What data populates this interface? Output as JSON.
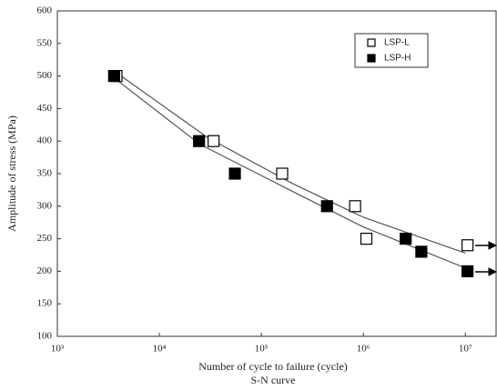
{
  "chart_data": {
    "type": "scatter",
    "x_label": "Number of cycle to failure (cycle)",
    "y_label": "Amplitude of stress (MPa)",
    "caption": "S-N curve",
    "x_log": true,
    "xlim": [
      1000,
      20000000
    ],
    "xticks": [
      {
        "value": 1000,
        "label": "10³"
      },
      {
        "value": 10000,
        "label": "10⁴"
      },
      {
        "value": 100000,
        "label": "10⁵"
      },
      {
        "value": 1000000,
        "label": "10⁶"
      },
      {
        "value": 10000000,
        "label": "10⁷"
      }
    ],
    "ylim": [
      100,
      600
    ],
    "yticks": [
      100,
      150,
      200,
      250,
      300,
      350,
      400,
      450,
      500,
      550,
      600
    ],
    "legend": "top-right",
    "series": [
      {
        "name": "LSP-L",
        "color": "#000000",
        "marker": "open-square",
        "x": [
          3800,
          34000,
          160000,
          830000,
          1070000,
          10500000
        ],
        "values": [
          500,
          400,
          350,
          300,
          250,
          240
        ]
      },
      {
        "name": "LSP-H",
        "color": "#000000",
        "marker": "filled-square",
        "x": [
          3600,
          24500,
          55000,
          440000,
          2600000,
          3700000,
          10500000
        ],
        "values": [
          500,
          400,
          350,
          300,
          250,
          230,
          200
        ]
      }
    ],
    "trend_lines": [
      {
        "color": "#555555",
        "x": [
          3800,
          30000,
          200000,
          1000000,
          10000000
        ],
        "y": [
          505,
          405,
          335,
          283,
          228
        ]
      },
      {
        "color": "#555555",
        "x": [
          3600,
          25000,
          200000,
          1000000,
          10000000
        ],
        "y": [
          497,
          395,
          323,
          268,
          205
        ]
      }
    ]
  }
}
